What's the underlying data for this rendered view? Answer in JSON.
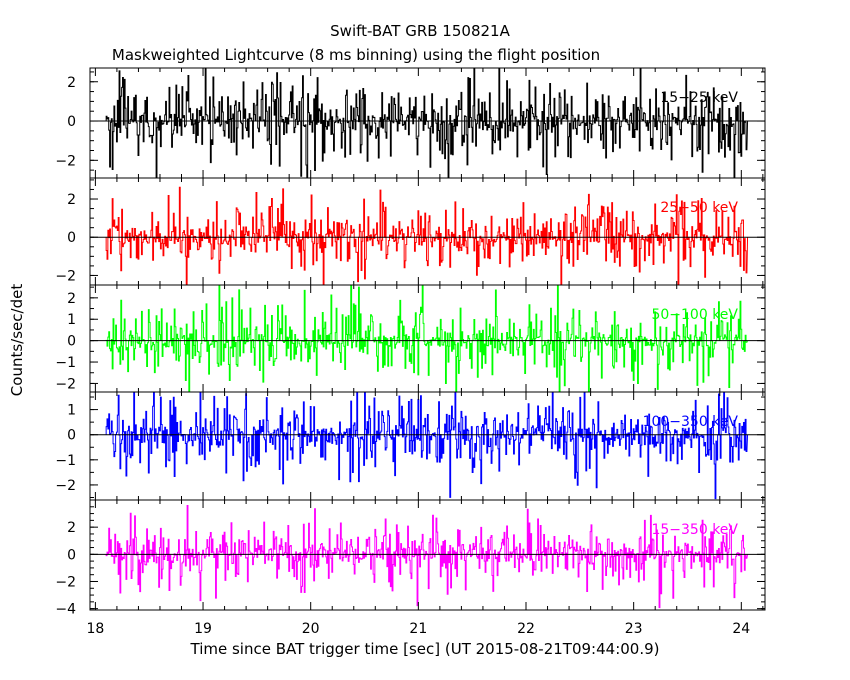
{
  "chart_data": {
    "type": "line",
    "title": "Swift-BAT GRB 150821A",
    "subtitle": "Maskweighted Lightcurve (8 ms binning) using the flight position",
    "xlabel": "Time since BAT trigger time [sec] (UT 2015-08-21T09:44:00.9)",
    "ylabel": "Counts/sec/det",
    "xlim": [
      17.95,
      24.22
    ],
    "xticks": [
      "18",
      "19",
      "20",
      "21",
      "22",
      "23",
      "24"
    ],
    "bin_width_sec": 0.008,
    "data_start_sec": 18.1,
    "data_end_sec": 24.05,
    "grid": false,
    "panels": [
      {
        "name": "15-25 keV",
        "label": "15−25 keV",
        "color": "#000000",
        "ylim": [
          -2.9,
          2.7
        ],
        "yticks": [
          "2",
          "0",
          "−2"
        ],
        "amplitude": 1.1
      },
      {
        "name": "25-50 keV",
        "label": "25−50 keV",
        "color": "#ff0000",
        "ylim": [
          -2.5,
          3.1
        ],
        "yticks": [
          "2",
          "0",
          "−2"
        ],
        "amplitude": 1.0
      },
      {
        "name": "50-100 keV",
        "label": "50−100 keV",
        "color": "#00ff00",
        "ylim": [
          -2.4,
          2.6
        ],
        "yticks": [
          "2",
          "1",
          "0",
          "−1",
          "−2"
        ],
        "amplitude": 0.9
      },
      {
        "name": "100-350 keV",
        "label": "100−350 keV",
        "color": "#0000ff",
        "ylim": [
          -2.6,
          1.7
        ],
        "yticks": [
          "1",
          "0",
          "−1",
          "−2"
        ],
        "amplitude": 0.85
      },
      {
        "name": "15-350 keV",
        "label": "15−350 keV",
        "color": "#ff00ff",
        "ylim": [
          -4.1,
          4.0
        ],
        "yticks": [
          "2",
          "0",
          "−2",
          "−4"
        ],
        "amplitude": 1.3
      }
    ]
  }
}
